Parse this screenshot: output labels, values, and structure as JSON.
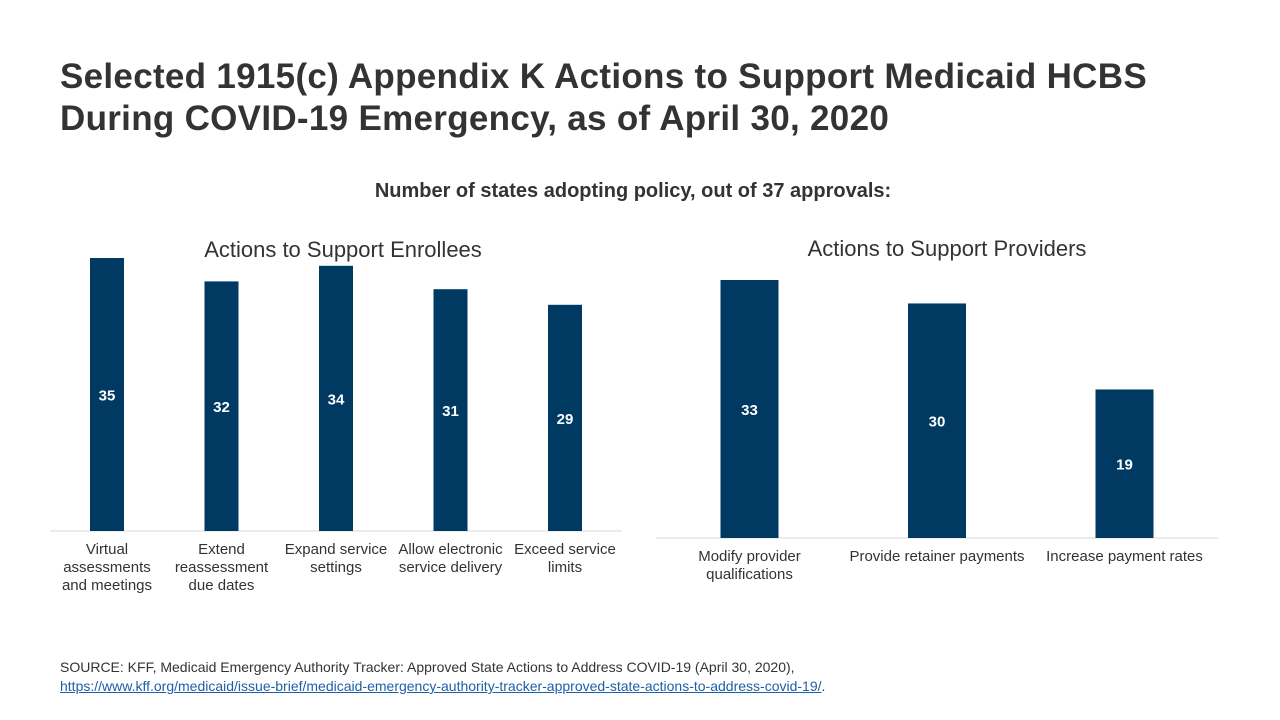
{
  "title": "Selected 1915(c) Appendix K Actions to Support Medicaid HCBS During COVID-19 Emergency, as of April 30, 2020",
  "subtitle": "Number of states adopting policy, out of 37 approvals:",
  "colors": {
    "bar": "#003a63",
    "axis": "#d9d9d9",
    "text": "#333333",
    "link": "#1f5fa8"
  },
  "chart_data": [
    {
      "type": "bar",
      "title": "Actions to Support Enrollees",
      "categories": [
        "Virtual assessments and meetings",
        "Extend reassessment due dates",
        "Expand service settings",
        "Allow electronic service delivery",
        "Exceed service limits"
      ],
      "values": [
        35,
        32,
        34,
        31,
        29
      ],
      "ylim": [
        0,
        37
      ],
      "grid": false,
      "data_labels": true
    },
    {
      "type": "bar",
      "title": "Actions to Support Providers",
      "categories": [
        "Modify provider qualifications",
        "Provide retainer payments",
        "Increase payment rates"
      ],
      "values": [
        33,
        30,
        19
      ],
      "ylim": [
        0,
        37
      ],
      "grid": false,
      "data_labels": true
    }
  ],
  "source": {
    "prefix": "SOURCE: KFF, Medicaid Emergency Authority  Tracker: Approved State Actions to Address COVID-19 (April 30, 2020),",
    "link": "https://www.kff.org/medicaid/issue-brief/medicaid-emergency-authority-tracker-approved-state-actions-to-address-covid-19/",
    "suffix": "."
  }
}
